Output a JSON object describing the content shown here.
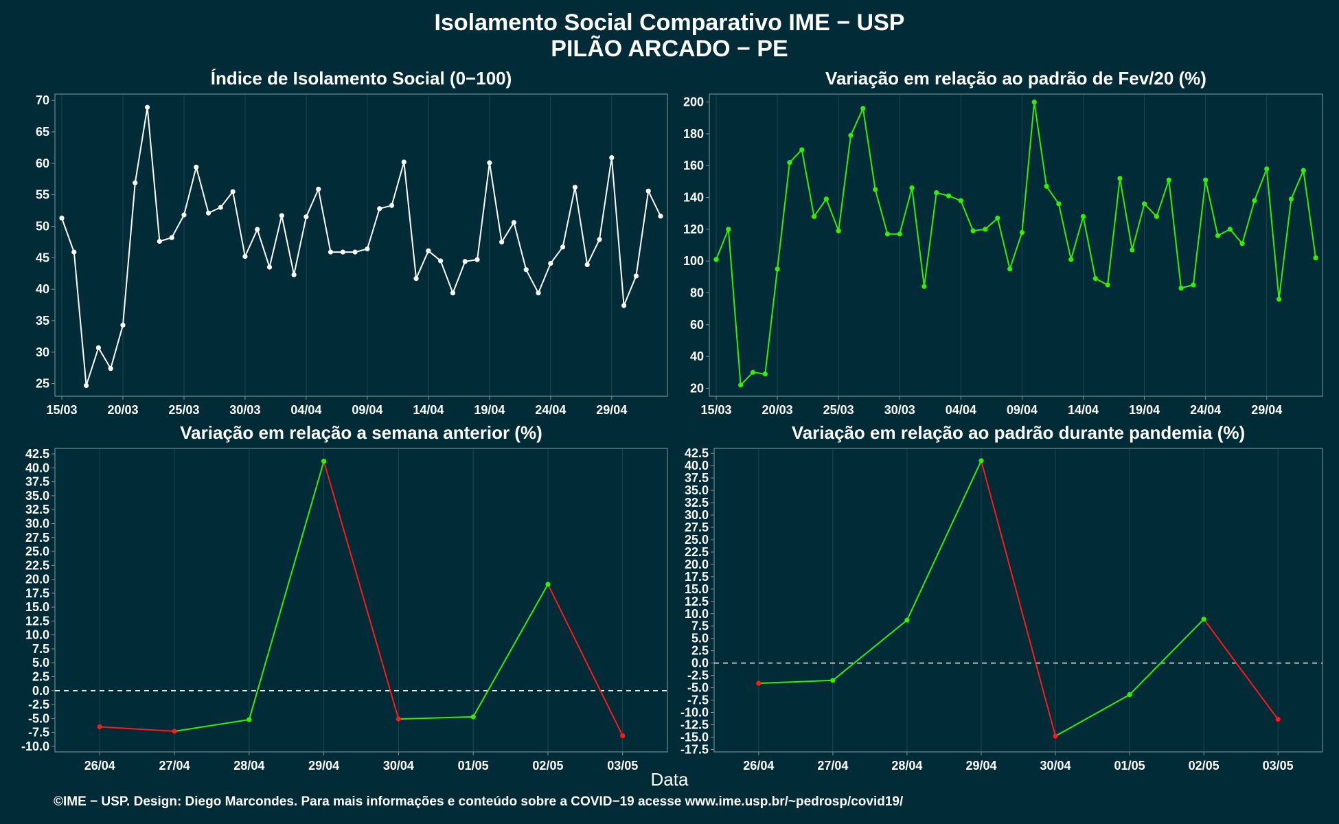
{
  "header": {
    "title": "Isolamento Social Comparativo IME − USP",
    "subtitle": "PILÃO ARCADO − PE"
  },
  "xlabel": "Data",
  "footer": "©IME − USP. Design: Diego Marcondes. Para mais informações e conteúdo sobre a COVID−19 acesse www.ime.usp.br/~pedrosp/covid19/",
  "colors": {
    "background": "#012b36",
    "white_line": "#ffffff",
    "up": "#33ee00",
    "down": "#ff1a1a",
    "grid": "#1f4450"
  },
  "chart_data": [
    {
      "type": "line",
      "title": "Índice de Isolamento Social (0−100)",
      "color": "#ffffff",
      "ylim": [
        23,
        71
      ],
      "yticks": [
        25,
        30,
        35,
        40,
        45,
        50,
        55,
        60,
        65,
        70
      ],
      "tick_labels": [
        "15/03",
        "20/03",
        "25/03",
        "30/03",
        "04/04",
        "09/04",
        "14/04",
        "19/04",
        "24/04",
        "29/04"
      ],
      "tick_index": [
        0,
        5,
        10,
        15,
        20,
        25,
        30,
        35,
        40,
        45
      ],
      "values": [
        51.3,
        45.9,
        24.7,
        30.7,
        27.4,
        34.3,
        56.9,
        68.9,
        47.6,
        48.2,
        51.8,
        59.4,
        52.1,
        53.0,
        55.5,
        45.2,
        49.5,
        43.5,
        51.7,
        42.3,
        51.5,
        55.9,
        45.9,
        45.9,
        45.9,
        46.4,
        52.8,
        53.3,
        60.2,
        41.7,
        46.1,
        44.5,
        39.4,
        44.4,
        44.7,
        60.1,
        47.5,
        50.6,
        43.1,
        39.4,
        44.1,
        46.7,
        56.2,
        43.9,
        47.9,
        60.9,
        37.4,
        42.1,
        55.6,
        51.6
      ]
    },
    {
      "type": "line",
      "title": "Variação em relação ao padrão de Fev/20 (%)",
      "color": "#33ee00",
      "ylim": [
        15,
        205
      ],
      "yticks": [
        20,
        40,
        60,
        80,
        100,
        120,
        140,
        160,
        180,
        200
      ],
      "tick_labels": [
        "15/03",
        "20/03",
        "25/03",
        "30/03",
        "04/04",
        "09/04",
        "14/04",
        "19/04",
        "24/04",
        "29/04"
      ],
      "tick_index": [
        0,
        5,
        10,
        15,
        20,
        25,
        30,
        35,
        40,
        45
      ],
      "values": [
        101,
        120,
        22,
        30,
        29,
        95,
        162,
        170,
        128,
        139,
        119,
        179,
        196,
        145,
        117,
        117,
        146,
        84,
        143,
        141,
        138,
        119,
        120,
        127,
        95,
        118,
        200,
        147,
        136,
        101,
        128,
        89,
        85,
        152,
        107,
        136,
        128,
        151,
        83,
        85,
        151,
        116,
        120,
        111,
        138,
        158,
        76,
        139,
        157,
        102
      ]
    },
    {
      "type": "line",
      "title": "Variação em relação a semana anterior (%)",
      "ylim": [
        -11,
        43.5
      ],
      "yticks": [
        -10.0,
        -7.5,
        -5.0,
        -2.5,
        0.0,
        2.5,
        5.0,
        7.5,
        10.0,
        12.5,
        15.0,
        17.5,
        20.0,
        22.5,
        25.0,
        27.5,
        30.0,
        32.5,
        35.0,
        37.5,
        40.0,
        42.5
      ],
      "categories": [
        "26/04",
        "27/04",
        "28/04",
        "29/04",
        "30/04",
        "01/05",
        "02/05",
        "03/05"
      ],
      "values": [
        -6.5,
        -7.3,
        -5.2,
        41.2,
        -5.1,
        -4.7,
        19.1,
        -8.1
      ],
      "reference_line": 0
    },
    {
      "type": "line",
      "title": "Variação em relação ao padrão durante pandemia (%)",
      "ylim": [
        -18,
        43.5
      ],
      "yticks": [
        -17.5,
        -15.0,
        -12.5,
        -10.0,
        -7.5,
        -5.0,
        -2.5,
        0.0,
        2.5,
        5.0,
        7.5,
        10.0,
        12.5,
        15.0,
        17.5,
        20.0,
        22.5,
        25.0,
        27.5,
        30.0,
        32.5,
        35.0,
        37.5,
        40.0,
        42.5
      ],
      "categories": [
        "26/04",
        "27/04",
        "28/04",
        "29/04",
        "30/04",
        "01/05",
        "02/05",
        "03/05"
      ],
      "values": [
        -4.1,
        -3.5,
        8.7,
        41.0,
        -14.8,
        -6.4,
        8.9,
        -11.4
      ],
      "reference_line": 0
    }
  ]
}
